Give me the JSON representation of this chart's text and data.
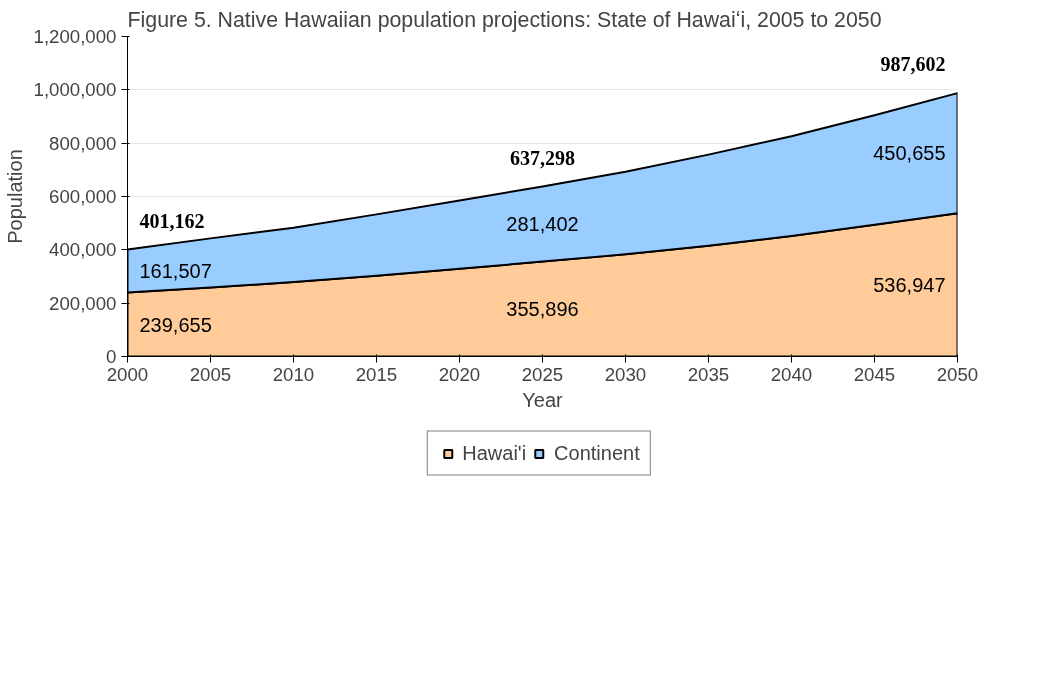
{
  "chart_data": {
    "type": "area",
    "stacked": true,
    "title": "Figure 5. Native Hawaiian population projections: State of Hawaiʻi, 2005 to 2050",
    "xlabel": "Year",
    "ylabel": "Population",
    "x": [
      2000,
      2005,
      2010,
      2015,
      2020,
      2025,
      2030,
      2035,
      2040,
      2045,
      2050
    ],
    "series": [
      {
        "name": "Hawai'i",
        "color": "#ffcc99",
        "values": [
          239655,
          259000,
          279000,
          303000,
          329000,
          355896,
          383000,
          415000,
          452000,
          494000,
          536947
        ],
        "value_labels": [
          "239,655",
          null,
          null,
          null,
          null,
          "355,896",
          null,
          null,
          null,
          null,
          "536,947"
        ]
      },
      {
        "name": "Continent",
        "color": "#99ccff",
        "values": [
          161507,
          184000,
          204000,
          230000,
          256000,
          281402,
          310000,
          342000,
          374000,
          411000,
          450655
        ],
        "value_labels": [
          "161,507",
          null,
          null,
          null,
          null,
          "281,402",
          null,
          null,
          null,
          null,
          "450,655"
        ]
      }
    ],
    "totals": [
      "401,162",
      null,
      null,
      null,
      null,
      "637,298",
      null,
      null,
      null,
      null,
      "987,602"
    ],
    "xlim": [
      2000,
      2050
    ],
    "xticks": [
      2000,
      2005,
      2010,
      2015,
      2020,
      2025,
      2030,
      2035,
      2040,
      2045,
      2050
    ],
    "ylim": [
      0,
      1200000
    ],
    "yticks": [
      0,
      {
        "value": 200000,
        "label": "200,000"
      },
      {
        "value": 400000,
        "label": "400,000"
      },
      {
        "value": 600000,
        "label": "600,000"
      },
      {
        "value": 800000,
        "label": "800,000"
      },
      {
        "value": 1000000,
        "label": "1,000,000"
      },
      {
        "value": 1200000,
        "label": "1,200,000"
      }
    ],
    "grid": "y",
    "legend": "bottom"
  }
}
